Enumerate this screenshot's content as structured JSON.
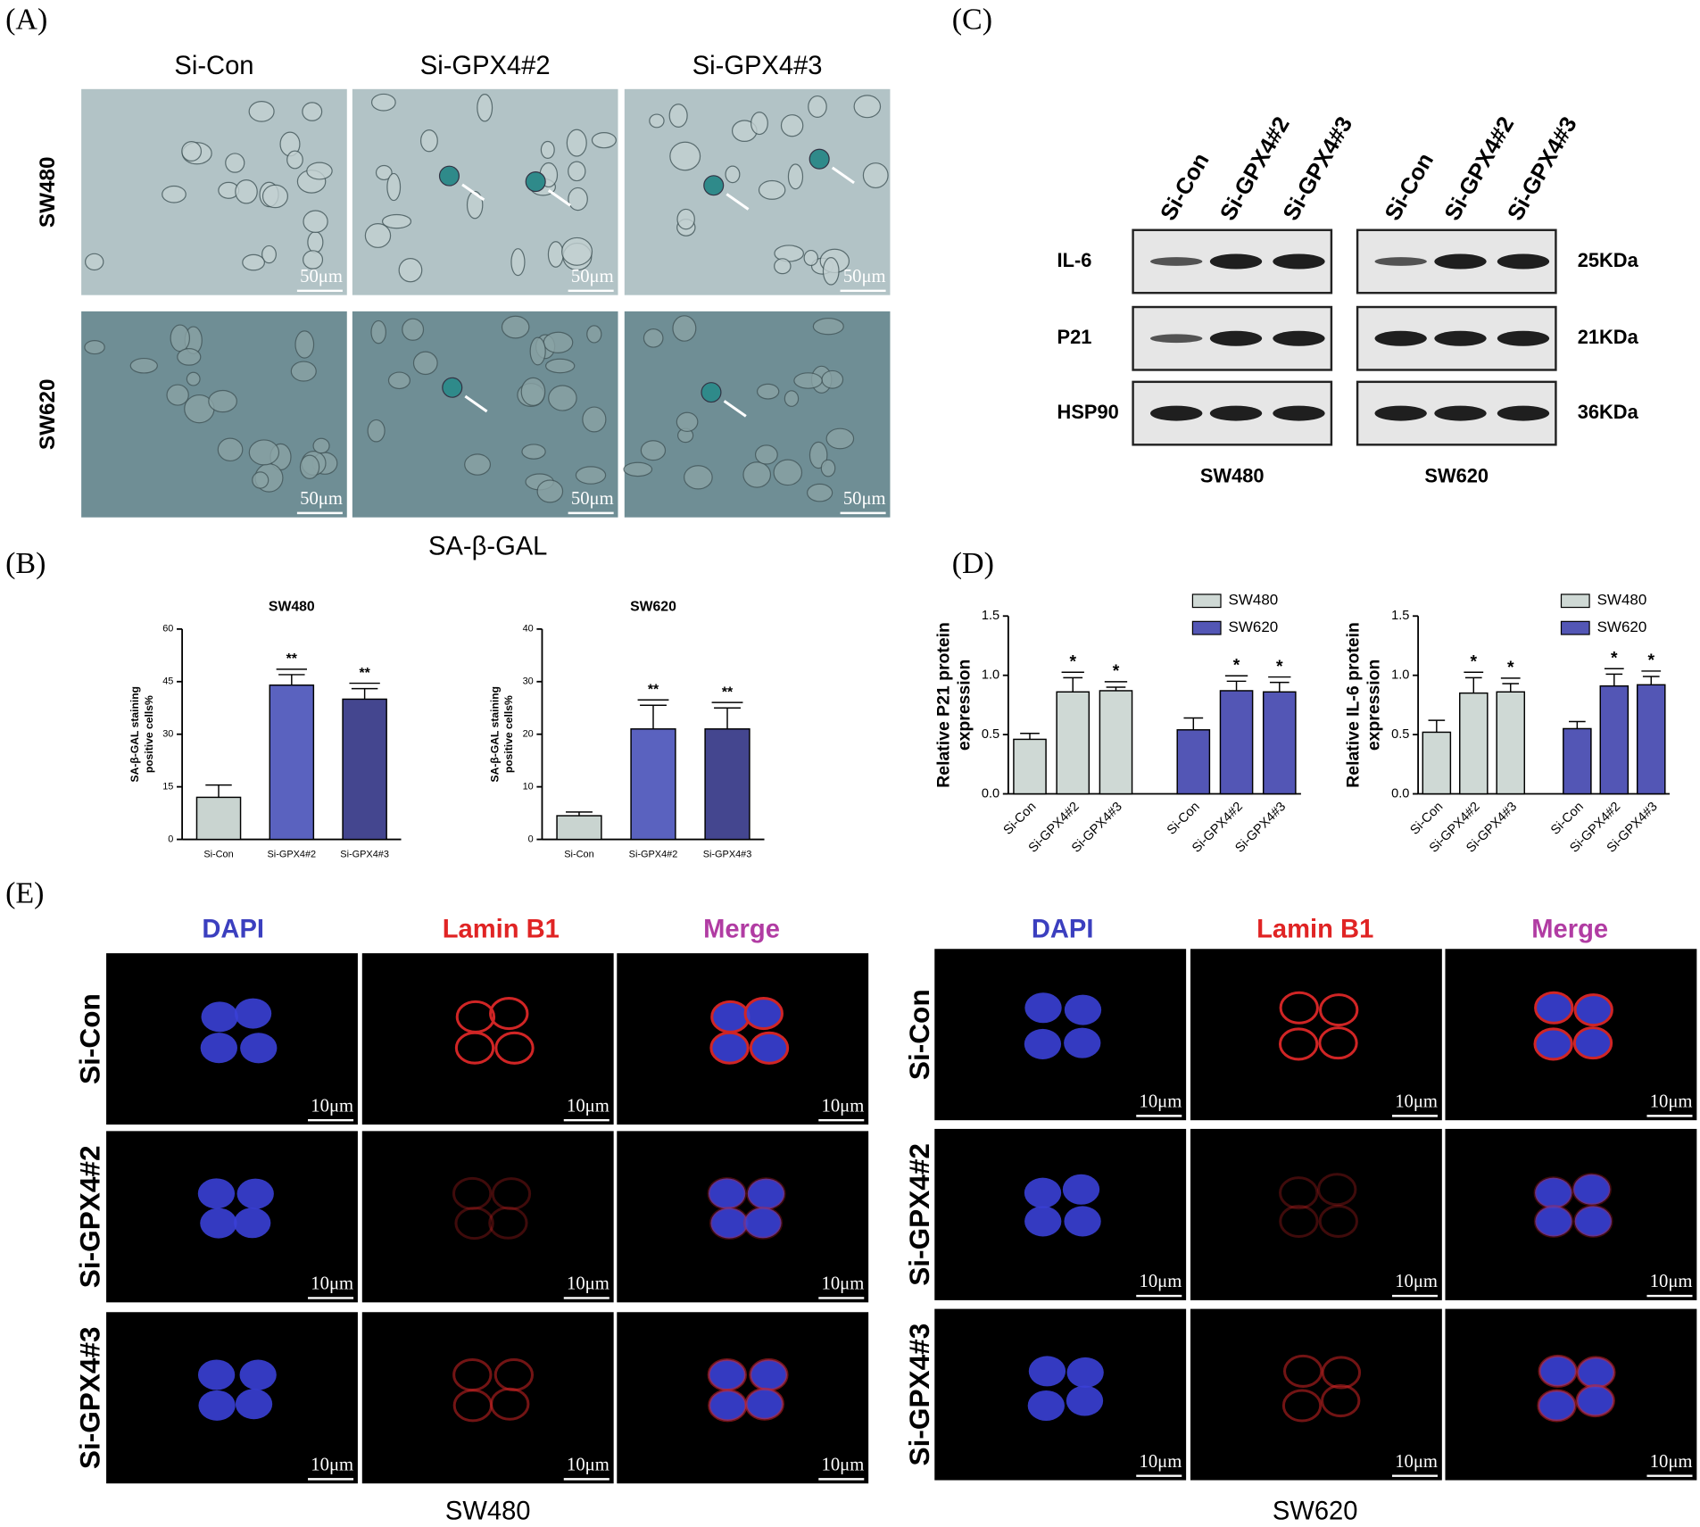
{
  "panels": {
    "A": {
      "label": "(A)",
      "columns": [
        "Si-Con",
        "Si-GPX4#2",
        "Si-GPX4#3"
      ],
      "rows": [
        "SW480",
        "SW620"
      ],
      "scale_bar": "50μm",
      "caption": "SA-β-GAL"
    },
    "B": {
      "label": "(B)"
    },
    "C": {
      "label": "(C)",
      "lanes": [
        "Si-Con",
        "Si-GPX4#2",
        "Si-GPX4#3"
      ],
      "proteins": [
        "IL-6",
        "P21",
        "HSP90"
      ],
      "sizes": [
        "25KDa",
        "21KDa",
        "36KDa"
      ],
      "cell_lines": [
        "SW480",
        "SW620"
      ]
    },
    "D": {
      "label": "(D)"
    },
    "E": {
      "label": "(E)",
      "channels": [
        "DAPI",
        "Lamin B1",
        "Merge"
      ],
      "channel_colors": [
        "#3b3fbf",
        "#e02424",
        "#b13ca3"
      ],
      "rows": [
        "Si-Con",
        "Si-GPX4#2",
        "Si-GPX4#3"
      ],
      "scale_bar": "10μm",
      "cell_lines": [
        "SW480",
        "SW620"
      ]
    }
  },
  "chart_data": [
    {
      "type": "bar",
      "title": "SW480",
      "y_label": [
        "SA-β-GAL staining",
        "positive cells%"
      ],
      "categories": [
        "Si-Con",
        "Si-GPX4#2",
        "Si-GPX4#3"
      ],
      "values": [
        12,
        44,
        40
      ],
      "errors": [
        3.5,
        3,
        3
      ],
      "annotations": [
        null,
        "**",
        "**"
      ],
      "colors": [
        "#c9d4d0",
        "#5a62bf",
        "#44468f"
      ],
      "ylim": [
        0,
        60
      ],
      "yticks": [
        0,
        15,
        30,
        45,
        60
      ]
    },
    {
      "type": "bar",
      "title": "SW620",
      "y_label": [
        "SA-β-GAL staining",
        "positive cells%"
      ],
      "categories": [
        "Si-Con",
        "Si-GPX4#2",
        "Si-GPX4#3"
      ],
      "values": [
        4.5,
        21,
        21
      ],
      "errors": [
        0.7,
        4.5,
        4
      ],
      "annotations": [
        null,
        "**",
        "**"
      ],
      "colors": [
        "#c9d4d0",
        "#5a62bf",
        "#44468f"
      ],
      "ylim": [
        0,
        40
      ],
      "yticks": [
        0,
        10,
        20,
        30,
        40
      ]
    },
    {
      "type": "bar",
      "y_label": [
        "Relative P21 protein",
        "expression"
      ],
      "legend": "upper right",
      "categories": [
        "Si-Con",
        "Si-GPX4#2",
        "Si-GPX4#3"
      ],
      "series": [
        {
          "name": "SW480",
          "color": "#cfd9d5",
          "values": [
            0.46,
            0.86,
            0.87
          ],
          "errors": [
            0.05,
            0.12,
            0.03
          ],
          "annotations": [
            null,
            "*",
            "*"
          ]
        },
        {
          "name": "SW620",
          "color": "#5356b5",
          "values": [
            0.54,
            0.87,
            0.86
          ],
          "errors": [
            0.1,
            0.08,
            0.08
          ],
          "annotations": [
            null,
            "*",
            "*"
          ]
        }
      ],
      "ylim": [
        0,
        1.5
      ],
      "yticks": [
        {
          "value": 0,
          "label": "0.0"
        },
        0.5,
        {
          "value": 1,
          "label": "1.0"
        },
        1.5
      ]
    },
    {
      "type": "bar",
      "y_label": [
        "Relative IL-6 protein",
        "expression"
      ],
      "legend": "upper right",
      "categories": [
        "Si-Con",
        "Si-GPX4#2",
        "Si-GPX4#3"
      ],
      "series": [
        {
          "name": "SW480",
          "color": "#cfd9d5",
          "values": [
            0.52,
            0.85,
            0.86
          ],
          "errors": [
            0.1,
            0.13,
            0.07
          ],
          "annotations": [
            null,
            "*",
            "*"
          ]
        },
        {
          "name": "SW620",
          "color": "#5356b5",
          "values": [
            0.55,
            0.91,
            0.92
          ],
          "errors": [
            0.06,
            0.1,
            0.07
          ],
          "annotations": [
            null,
            "*",
            "*"
          ]
        }
      ],
      "ylim": [
        0,
        1.5
      ],
      "yticks": [
        {
          "value": 0,
          "label": "0.0"
        },
        0.5,
        {
          "value": 1,
          "label": "1.0"
        },
        1.5
      ]
    }
  ]
}
